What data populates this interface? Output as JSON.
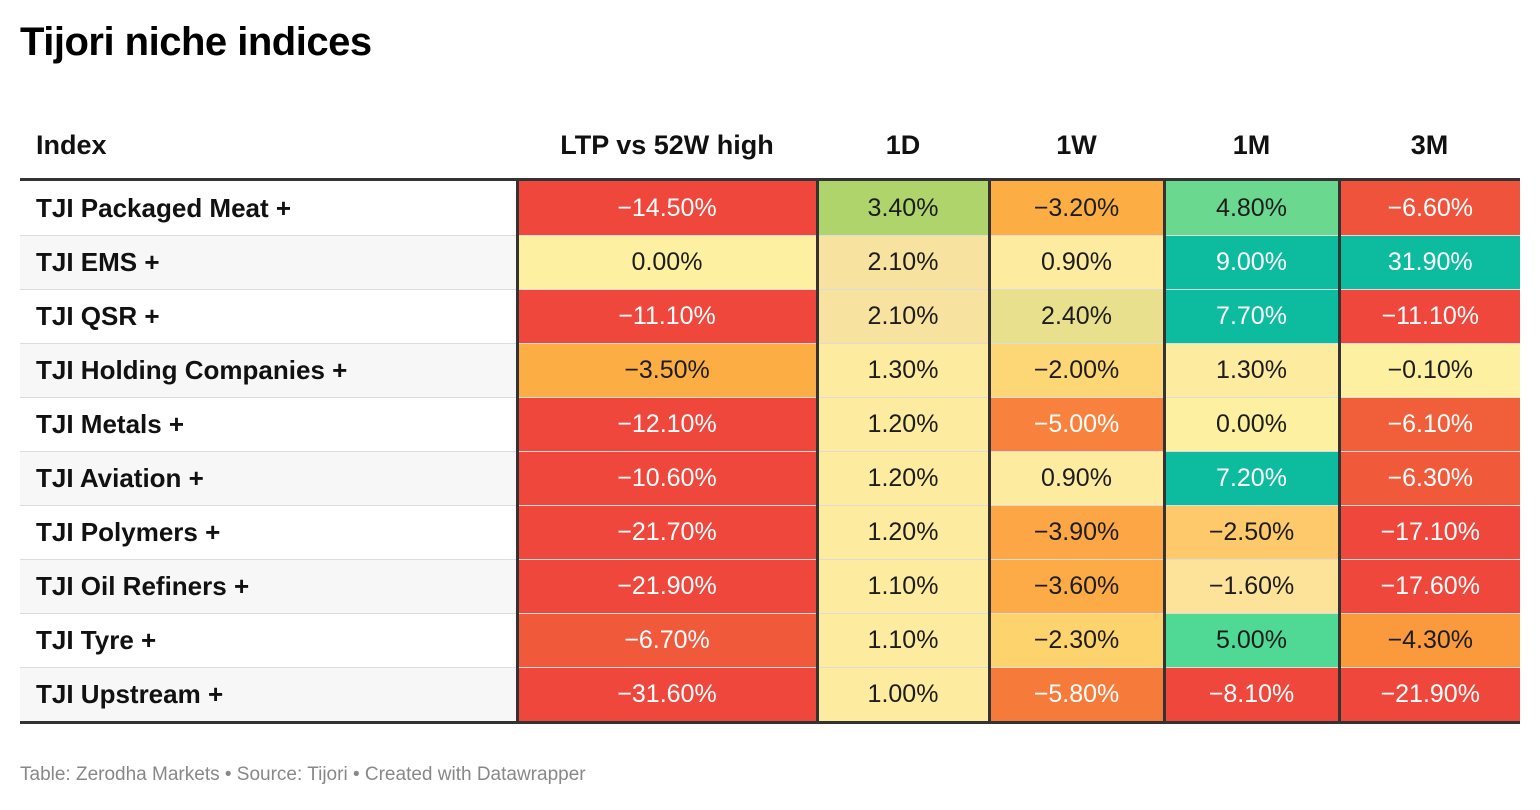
{
  "title": "Tijori niche indices",
  "footer": "Table: Zerodha Markets • Source: Tijori • Created with Datawrapper",
  "chart_data": {
    "type": "table",
    "columns": [
      "Index",
      "LTP vs 52W high",
      "1D",
      "1W",
      "1M",
      "3M"
    ],
    "rows": [
      {
        "name": "TJI Packaged Meat +",
        "values": [
          "−14.50%",
          "3.40%",
          "−3.20%",
          "4.80%",
          "−6.60%"
        ],
        "nums": [
          -14.5,
          3.4,
          -3.2,
          4.8,
          -6.6
        ]
      },
      {
        "name": "TJI EMS +",
        "values": [
          "0.00%",
          "2.10%",
          "0.90%",
          "9.00%",
          "31.90%"
        ],
        "nums": [
          0.0,
          2.1,
          0.9,
          9.0,
          31.9
        ]
      },
      {
        "name": "TJI QSR +",
        "values": [
          "−11.10%",
          "2.10%",
          "2.40%",
          "7.70%",
          "−11.10%"
        ],
        "nums": [
          -11.1,
          2.1,
          2.4,
          7.7,
          -11.1
        ]
      },
      {
        "name": "TJI Holding Companies +",
        "values": [
          "−3.50%",
          "1.30%",
          "−2.00%",
          "1.30%",
          "−0.10%"
        ],
        "nums": [
          -3.5,
          1.3,
          -2.0,
          1.3,
          -0.1
        ]
      },
      {
        "name": "TJI Metals +",
        "values": [
          "−12.10%",
          "1.20%",
          "−5.00%",
          "0.00%",
          "−6.10%"
        ],
        "nums": [
          -12.1,
          1.2,
          -5.0,
          0.0,
          -6.1
        ]
      },
      {
        "name": "TJI Aviation +",
        "values": [
          "−10.60%",
          "1.20%",
          "0.90%",
          "7.20%",
          "−6.30%"
        ],
        "nums": [
          -10.6,
          1.2,
          0.9,
          7.2,
          -6.3
        ]
      },
      {
        "name": "TJI Polymers +",
        "values": [
          "−21.70%",
          "1.20%",
          "−3.90%",
          "−2.50%",
          "−17.10%"
        ],
        "nums": [
          -21.7,
          1.2,
          -3.9,
          -2.5,
          -17.1
        ]
      },
      {
        "name": "TJI Oil Refiners +",
        "values": [
          "−21.90%",
          "1.10%",
          "−3.60%",
          "−1.60%",
          "−17.60%"
        ],
        "nums": [
          -21.9,
          1.1,
          -3.6,
          -1.6,
          -17.6
        ]
      },
      {
        "name": "TJI Tyre +",
        "values": [
          "−6.70%",
          "1.10%",
          "−2.30%",
          "5.00%",
          "−4.30%"
        ],
        "nums": [
          -6.7,
          1.1,
          -2.3,
          5.0,
          -4.3
        ]
      },
      {
        "name": "TJI Upstream +",
        "values": [
          "−31.60%",
          "1.00%",
          "−5.80%",
          "−8.10%",
          "−21.90%"
        ],
        "nums": [
          -31.6,
          1.0,
          -5.8,
          -8.1,
          -21.9
        ]
      }
    ],
    "cell_colors": [
      [
        "#ef473c",
        "#afd46c",
        "#fcae45",
        "#6ad98f",
        "#f0533c"
      ],
      [
        "#fdf0a0",
        "#f8e2a0",
        "#fdeba0",
        "#0dbb9f",
        "#0dbb9f"
      ],
      [
        "#ef473c",
        "#f8e2a0",
        "#e8e08c",
        "#0dbb9f",
        "#ef473c"
      ],
      [
        "#fcae45",
        "#fdeba0",
        "#fdd775",
        "#fdeba0",
        "#fdf0a0"
      ],
      [
        "#ef473c",
        "#fdeba0",
        "#f8823d",
        "#fdf0a0",
        "#f05e3a"
      ],
      [
        "#ef473c",
        "#fdeba0",
        "#fdeba0",
        "#0dbb9f",
        "#f05a3b"
      ],
      [
        "#ef473c",
        "#fdeba0",
        "#fca646",
        "#fdc96b",
        "#ef473c"
      ],
      [
        "#ef473c",
        "#fdeba0",
        "#fcab46",
        "#fde29a",
        "#ef473c"
      ],
      [
        "#f05a3b",
        "#fdeba0",
        "#fdd36e",
        "#4fd995",
        "#fa9a3d"
      ],
      [
        "#ef473c",
        "#fdeba0",
        "#f67a3a",
        "#ef473c",
        "#ef473c"
      ]
    ],
    "color_scale": {
      "negative": "#ef473c",
      "neutral": "#fdf0a0",
      "positive": "#0dbb9f"
    }
  }
}
